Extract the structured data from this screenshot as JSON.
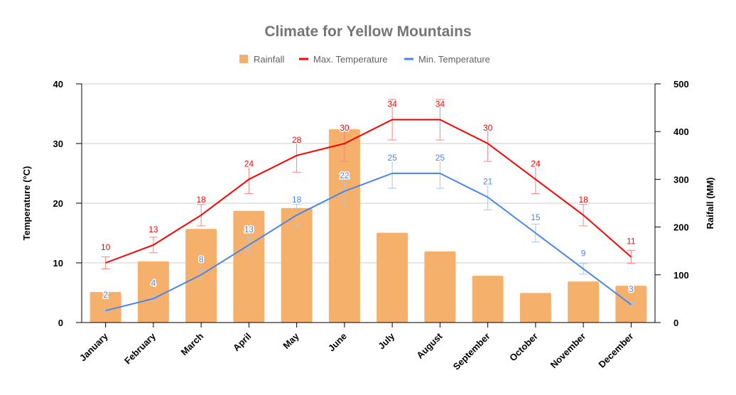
{
  "chart_data": {
    "type": "bar+line",
    "title": "Climate for Yellow Mountains",
    "categories": [
      "January",
      "February",
      "March",
      "April",
      "May",
      "June",
      "July",
      "August",
      "September",
      "October",
      "November",
      "December"
    ],
    "series": [
      {
        "name": "Rainfall",
        "type": "bar",
        "axis": "right",
        "color": "#f5b16b",
        "values": [
          64,
          128,
          196,
          234,
          240,
          405,
          188,
          149,
          98,
          62,
          86,
          77
        ]
      },
      {
        "name": "Max. Temperature",
        "type": "line",
        "axis": "left",
        "color": "#ff0000",
        "error_bars": "±10%",
        "values": [
          10,
          13,
          18,
          24,
          28,
          30,
          34,
          34,
          30,
          24,
          18,
          11
        ]
      },
      {
        "name": "Min. Temperature",
        "type": "line",
        "axis": "left",
        "color": "#4a86e8",
        "error_bars": "±10%",
        "values": [
          2,
          4,
          8,
          13,
          18,
          22,
          25,
          25,
          21,
          15,
          9,
          3
        ]
      }
    ],
    "ylabel": "Temperature (°C)",
    "ylabel_right": "Raifall (MM)",
    "ylim": [
      0,
      40
    ],
    "yticks": [
      0,
      10,
      20,
      30,
      40
    ],
    "ylim_right": [
      0,
      500
    ],
    "yticks_right": [
      0,
      100,
      200,
      300,
      400,
      500
    ],
    "grid": true,
    "legend": "top"
  }
}
